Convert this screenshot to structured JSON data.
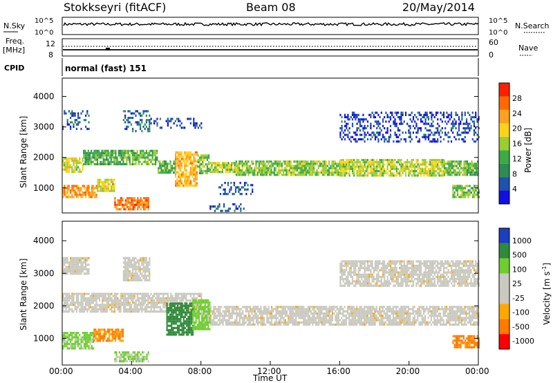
{
  "header": {
    "station": "Stokkseyri (fitACF)",
    "beam": "Beam 08",
    "date": "20/May/2014"
  },
  "top_panels": {
    "nsky_label": "N.Sky",
    "nsearch_label": "N.Search",
    "count_ticks_left": [
      "10^5",
      "10^0"
    ],
    "count_ticks_right": [
      "10^5",
      "10^0"
    ],
    "freq_label_line1": "Freq.",
    "freq_label_line2": "[MHz]",
    "freq_ticks": [
      "12",
      "8"
    ],
    "nave_label": "Nave",
    "nave_ticks": [
      "60",
      "0"
    ],
    "cpid_label": "CPID",
    "cpid_value": "normal (fast) 151"
  },
  "colors": {
    "power_scale": [
      "#1010e0",
      "#2050b0",
      "#2e8b57",
      "#3daa45",
      "#9ccc30",
      "#ffd21a",
      "#ffa020",
      "#ff6a00",
      "#ff2000"
    ],
    "velocity_scale": [
      "#ff0000",
      "#ff7a00",
      "#ffa700",
      "#c9c9bf",
      "#c9c9bf",
      "#6fce2f",
      "#2f8a3a",
      "#1a3fbf"
    ],
    "ground_scatter": "#c9c9bf"
  },
  "chart_data": [
    {
      "type": "heatmap",
      "name": "power",
      "ylabel": "Slant Range [km]",
      "ylim": [
        180,
        4600
      ],
      "yticks": [
        1000,
        2000,
        3000,
        4000
      ],
      "xlim": [
        0,
        24
      ],
      "colorbar_label": "Power [dB]",
      "colorbar_ticks": [
        4,
        8,
        12,
        16,
        20,
        24,
        28
      ],
      "colorbar_range": [
        0,
        32
      ],
      "regions": [
        {
          "t0": 0.0,
          "t1": 1.2,
          "r0": 1550,
          "r1": 2000,
          "v": 18
        },
        {
          "t0": 1.2,
          "t1": 3.5,
          "r0": 1800,
          "r1": 2250,
          "v": 12
        },
        {
          "t0": 3.5,
          "t1": 5.5,
          "r0": 1800,
          "r1": 2250,
          "v": 14
        },
        {
          "t0": 5.5,
          "t1": 6.5,
          "r0": 1500,
          "r1": 1900,
          "v": 12
        },
        {
          "t0": 6.5,
          "t1": 7.8,
          "r0": 1100,
          "r1": 2200,
          "v": 22
        },
        {
          "t0": 7.8,
          "t1": 8.5,
          "r0": 1500,
          "r1": 2100,
          "v": 14
        },
        {
          "t0": 8.5,
          "t1": 10.0,
          "r0": 1500,
          "r1": 1850,
          "v": 16
        },
        {
          "t0": 10.0,
          "t1": 16.0,
          "r0": 1400,
          "r1": 1900,
          "v": 15
        },
        {
          "t0": 16.0,
          "t1": 22.0,
          "r0": 1400,
          "r1": 1950,
          "v": 17
        },
        {
          "t0": 22.0,
          "t1": 24.0,
          "r0": 1400,
          "r1": 1900,
          "v": 14
        },
        {
          "t0": 0.0,
          "t1": 2.0,
          "r0": 700,
          "r1": 1100,
          "v": 24
        },
        {
          "t0": 2.0,
          "t1": 3.0,
          "r0": 900,
          "r1": 1300,
          "v": 18
        },
        {
          "t0": 3.0,
          "t1": 5.0,
          "r0": 300,
          "r1": 700,
          "v": 26
        },
        {
          "t0": 0.0,
          "t1": 1.5,
          "r0": 2950,
          "r1": 3550,
          "v": 6
        },
        {
          "t0": 3.5,
          "t1": 5.0,
          "r0": 2850,
          "r1": 3550,
          "v": 7
        },
        {
          "t0": 5.0,
          "t1": 8.0,
          "r0": 3000,
          "r1": 3300,
          "v": 4
        },
        {
          "t0": 9.0,
          "t1": 11.0,
          "r0": 800,
          "r1": 1200,
          "v": 6
        },
        {
          "t0": 16.0,
          "t1": 24.0,
          "r0": 2500,
          "r1": 3500,
          "v": 4
        },
        {
          "t0": 22.5,
          "t1": 24.0,
          "r0": 700,
          "r1": 1100,
          "v": 14
        },
        {
          "t0": 8.5,
          "t1": 10.5,
          "r0": 250,
          "r1": 500,
          "v": 6
        }
      ]
    },
    {
      "type": "heatmap",
      "name": "velocity",
      "ylabel": "Slant Range [km]",
      "ylim": [
        180,
        4600
      ],
      "yticks": [
        1000,
        2000,
        3000,
        4000
      ],
      "xlim": [
        0,
        24
      ],
      "xticks": [
        "00:00",
        "04:00",
        "08:00",
        "12:00",
        "16:00",
        "20:00",
        "00:00"
      ],
      "xlabel": "Time UT",
      "colorbar_label": "Velocity [m s-1]",
      "colorbar_ticks": [
        "1000",
        "500",
        "100",
        "25",
        "-25",
        "-100",
        "-500",
        "-1000"
      ],
      "regions": [
        {
          "t0": 0.0,
          "t1": 8.0,
          "r0": 1800,
          "r1": 2400,
          "v": 0
        },
        {
          "t0": 8.0,
          "t1": 24.0,
          "r0": 1400,
          "r1": 2000,
          "v": 0
        },
        {
          "t0": 0.0,
          "t1": 1.5,
          "r0": 3000,
          "r1": 3500,
          "v": 0
        },
        {
          "t0": 3.5,
          "t1": 5.0,
          "r0": 2800,
          "r1": 3500,
          "v": 0
        },
        {
          "t0": 0.0,
          "t1": 1.8,
          "r0": 700,
          "r1": 1200,
          "v": 150
        },
        {
          "t0": 1.8,
          "t1": 3.5,
          "r0": 900,
          "r1": 1300,
          "v": -120
        },
        {
          "t0": 3.0,
          "t1": 5.0,
          "r0": 300,
          "r1": 600,
          "v": 120
        },
        {
          "t0": 6.0,
          "t1": 7.5,
          "r0": 1100,
          "r1": 2100,
          "v": 900
        },
        {
          "t0": 7.5,
          "t1": 8.5,
          "r0": 1300,
          "r1": 2200,
          "v": 300
        },
        {
          "t0": 22.5,
          "t1": 24.0,
          "r0": 700,
          "r1": 1100,
          "v": -150
        },
        {
          "t0": 16.0,
          "t1": 24.0,
          "r0": 2600,
          "r1": 3400,
          "v": 0
        }
      ]
    }
  ]
}
